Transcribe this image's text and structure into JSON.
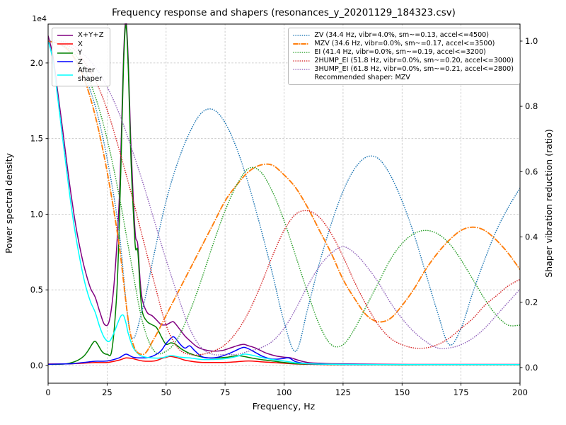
{
  "chart_data": {
    "type": "line",
    "title": "Frequency response and shapers (resonances_y_20201129_184323.csv)",
    "xlabel": "Frequency, Hz",
    "ylabel_left": "Power spectral density",
    "ylabel_right": "Shaper vibration reduction (ratio)",
    "y_offset_text": "1e4",
    "grid": true,
    "legend_left_position": "upper left",
    "legend_right_position": "upper right",
    "legend_right_note": "Recommended shaper: MZV",
    "recommended_shaper": "MZV",
    "xlim": [
      0,
      200
    ],
    "xticks": [
      0,
      25,
      50,
      75,
      100,
      125,
      150,
      175,
      200
    ],
    "xtick_labels": [
      "0",
      "25",
      "50",
      "75",
      "100",
      "125",
      "150",
      "175",
      "200"
    ],
    "ylim_left": [
      -0.117,
      2.257
    ],
    "yticks_left": [
      0.0,
      0.5,
      1.0,
      1.5,
      2.0
    ],
    "ytick_left_labels": [
      "0.0",
      "0.5",
      "1.0",
      "1.5",
      "2.0"
    ],
    "ylim_right": [
      -0.048,
      1.052
    ],
    "yticks_right": [
      0.0,
      0.2,
      0.4,
      0.6,
      0.8,
      1.0
    ],
    "ytick_right_labels": [
      "0.0",
      "0.2",
      "0.4",
      "0.6",
      "0.8",
      "1.0"
    ],
    "psd_units": "1e4",
    "psd_series": [
      {
        "id": "xyz",
        "name": "X+Y+Z",
        "color": "#800080",
        "style": "solid",
        "axis": "left",
        "x": [
          0,
          2,
          4,
          6,
          8,
          10,
          12,
          14,
          16,
          18,
          20,
          22,
          24,
          26,
          28,
          30,
          31,
          32,
          33,
          34,
          35,
          36,
          37,
          38,
          39,
          40,
          42,
          44,
          46,
          48,
          50,
          52,
          53,
          54,
          56,
          58,
          60,
          63,
          66,
          70,
          74,
          78,
          81,
          83,
          85,
          88,
          92,
          96,
          100,
          103,
          106,
          110,
          115,
          120,
          130,
          140,
          160,
          180,
          200
        ],
        "y": [
          2.18,
          2.05,
          1.82,
          1.58,
          1.33,
          1.1,
          0.9,
          0.74,
          0.61,
          0.51,
          0.45,
          0.35,
          0.27,
          0.3,
          0.55,
          1.05,
          1.5,
          2.05,
          2.28,
          2.0,
          1.5,
          1.13,
          0.86,
          0.8,
          0.56,
          0.43,
          0.35,
          0.33,
          0.3,
          0.27,
          0.27,
          0.285,
          0.29,
          0.275,
          0.235,
          0.195,
          0.165,
          0.125,
          0.105,
          0.095,
          0.1,
          0.12,
          0.135,
          0.14,
          0.13,
          0.115,
          0.085,
          0.065,
          0.055,
          0.05,
          0.035,
          0.02,
          0.015,
          0.012,
          0.01,
          0.008,
          0.007,
          0.007,
          0.007
        ]
      },
      {
        "id": "x",
        "name": "X",
        "color": "#ff0000",
        "style": "solid",
        "axis": "left",
        "x": [
          0,
          5,
          10,
          15,
          20,
          25,
          30,
          33,
          36,
          40,
          45,
          48,
          50,
          52,
          55,
          58,
          62,
          66,
          70,
          75,
          80,
          85,
          90,
          95,
          100,
          105,
          110,
          120,
          140,
          160,
          180,
          200
        ],
        "y": [
          0.01,
          0.01,
          0.012,
          0.015,
          0.02,
          0.02,
          0.035,
          0.05,
          0.045,
          0.03,
          0.03,
          0.045,
          0.055,
          0.06,
          0.05,
          0.035,
          0.025,
          0.02,
          0.02,
          0.02,
          0.025,
          0.03,
          0.025,
          0.02,
          0.015,
          0.01,
          0.008,
          0.006,
          0.005,
          0.005,
          0.005,
          0.005
        ]
      },
      {
        "id": "y",
        "name": "Y",
        "color": "#008000",
        "style": "solid",
        "axis": "left",
        "x": [
          0,
          4,
          8,
          12,
          15,
          17,
          19,
          20,
          21,
          23,
          25,
          27,
          29,
          30,
          31,
          32,
          33,
          34,
          35,
          36,
          37,
          38,
          39,
          40,
          42,
          44,
          46,
          48,
          50,
          52,
          54,
          56,
          58,
          60,
          64,
          68,
          72,
          76,
          80,
          83,
          86,
          90,
          95,
          100,
          105,
          110,
          120,
          140,
          160,
          180,
          200
        ],
        "y": [
          0.008,
          0.008,
          0.012,
          0.03,
          0.06,
          0.1,
          0.15,
          0.16,
          0.14,
          0.09,
          0.075,
          0.1,
          0.45,
          0.85,
          1.4,
          2.0,
          2.25,
          1.95,
          1.42,
          1.05,
          0.78,
          0.76,
          0.5,
          0.35,
          0.29,
          0.27,
          0.25,
          0.19,
          0.14,
          0.15,
          0.14,
          0.115,
          0.095,
          0.08,
          0.06,
          0.05,
          0.05,
          0.055,
          0.065,
          0.06,
          0.05,
          0.04,
          0.03,
          0.02,
          0.012,
          0.01,
          0.007,
          0.005,
          0.005,
          0.005,
          0.005
        ]
      },
      {
        "id": "z",
        "name": "Z",
        "color": "#0000ff",
        "style": "solid",
        "axis": "left",
        "x": [
          0,
          5,
          10,
          15,
          20,
          25,
          30,
          33,
          36,
          40,
          43,
          46,
          48,
          50,
          52,
          53,
          54,
          56,
          58,
          60,
          62,
          65,
          68,
          72,
          76,
          79,
          81,
          83,
          85,
          88,
          91,
          95,
          99,
          102,
          105,
          110,
          115,
          120,
          140,
          160,
          180,
          200
        ],
        "y": [
          0.008,
          0.01,
          0.012,
          0.02,
          0.028,
          0.03,
          0.05,
          0.075,
          0.055,
          0.05,
          0.055,
          0.075,
          0.1,
          0.145,
          0.18,
          0.19,
          0.18,
          0.14,
          0.115,
          0.13,
          0.1,
          0.06,
          0.05,
          0.055,
          0.075,
          0.095,
          0.11,
          0.12,
          0.11,
          0.085,
          0.06,
          0.042,
          0.045,
          0.05,
          0.025,
          0.012,
          0.01,
          0.008,
          0.006,
          0.006,
          0.006,
          0.006
        ]
      },
      {
        "id": "after_shaper",
        "name": "After\nshaper",
        "color": "#00ffff",
        "style": "solid",
        "axis": "left",
        "x": [
          0,
          2,
          4,
          6,
          8,
          10,
          12,
          14,
          16,
          18,
          20,
          22,
          24,
          26,
          28,
          30,
          31,
          32,
          33,
          34,
          36,
          38,
          40,
          44,
          48,
          52,
          56,
          60,
          65,
          70,
          75,
          80,
          83,
          86,
          90,
          95,
          100,
          105,
          110,
          120,
          140,
          160,
          180,
          200
        ],
        "y": [
          2.15,
          2.02,
          1.78,
          1.52,
          1.27,
          1.03,
          0.83,
          0.66,
          0.52,
          0.42,
          0.35,
          0.25,
          0.18,
          0.16,
          0.22,
          0.3,
          0.33,
          0.33,
          0.28,
          0.21,
          0.12,
          0.08,
          0.06,
          0.05,
          0.05,
          0.065,
          0.055,
          0.05,
          0.04,
          0.04,
          0.045,
          0.06,
          0.075,
          0.07,
          0.055,
          0.04,
          0.03,
          0.018,
          0.012,
          0.008,
          0.006,
          0.006,
          0.006,
          0.006
        ]
      }
    ],
    "shaper_x": [
      0,
      5,
      10,
      15,
      20,
      25,
      30,
      35,
      40,
      45,
      50,
      55,
      60,
      65,
      70,
      75,
      80,
      85,
      90,
      95,
      100,
      105,
      110,
      115,
      120,
      125,
      130,
      135,
      140,
      145,
      150,
      155,
      160,
      165,
      170,
      175,
      180,
      185,
      190,
      195,
      200
    ],
    "shaper_series": [
      {
        "id": "zv",
        "name": "ZV (34.4 Hz, vibr=4.0%, sm~=0.13, accel<=4500)",
        "freq_hz": 34.4,
        "vibr_pct": 4.0,
        "smoothing": 0.13,
        "max_accel": 4500,
        "color": "#1f77b4",
        "style": "dotted",
        "axis": "right",
        "values": [
          1.0,
          0.99,
          0.96,
          0.9,
          0.8,
          0.64,
          0.42,
          0.1,
          0.18,
          0.35,
          0.51,
          0.63,
          0.72,
          0.78,
          0.79,
          0.75,
          0.67,
          0.56,
          0.43,
          0.29,
          0.14,
          0.05,
          0.18,
          0.32,
          0.44,
          0.54,
          0.61,
          0.645,
          0.64,
          0.59,
          0.51,
          0.41,
          0.29,
          0.17,
          0.07,
          0.12,
          0.23,
          0.33,
          0.42,
          0.49,
          0.55
        ]
      },
      {
        "id": "mzv",
        "name": "MZV (34.6 Hz, vibr=0.0%, sm~=0.17, accel<=3500)",
        "freq_hz": 34.6,
        "vibr_pct": 0.0,
        "smoothing": 0.17,
        "max_accel": 3500,
        "color": "#ff7f0e",
        "style": "dashdot",
        "axis": "right",
        "values": [
          1.0,
          0.99,
          0.96,
          0.89,
          0.77,
          0.6,
          0.38,
          0.1,
          0.04,
          0.09,
          0.16,
          0.23,
          0.3,
          0.37,
          0.44,
          0.51,
          0.56,
          0.6,
          0.62,
          0.62,
          0.59,
          0.55,
          0.49,
          0.42,
          0.35,
          0.27,
          0.21,
          0.16,
          0.14,
          0.15,
          0.19,
          0.24,
          0.3,
          0.35,
          0.39,
          0.42,
          0.43,
          0.42,
          0.39,
          0.35,
          0.3
        ]
      },
      {
        "id": "ei",
        "name": "EI (41.4 Hz, vibr=0.0%, sm~=0.19, accel<=3200)",
        "freq_hz": 41.4,
        "vibr_pct": 0.0,
        "smoothing": 0.19,
        "max_accel": 3200,
        "color": "#2ca02c",
        "style": "dotted",
        "axis": "right",
        "values": [
          1.0,
          0.99,
          0.97,
          0.92,
          0.83,
          0.7,
          0.53,
          0.33,
          0.14,
          0.05,
          0.05,
          0.09,
          0.17,
          0.27,
          0.38,
          0.48,
          0.56,
          0.61,
          0.6,
          0.54,
          0.45,
          0.34,
          0.23,
          0.13,
          0.07,
          0.07,
          0.12,
          0.19,
          0.26,
          0.33,
          0.38,
          0.41,
          0.42,
          0.41,
          0.38,
          0.33,
          0.27,
          0.21,
          0.16,
          0.13,
          0.13
        ]
      },
      {
        "id": "2hump_ei",
        "name": "2HUMP_EI (51.8 Hz, vibr=0.0%, sm~=0.20, accel<=3000)",
        "freq_hz": 51.8,
        "vibr_pct": 0.0,
        "smoothing": 0.2,
        "max_accel": 3000,
        "color": "#d62728",
        "style": "dotted",
        "axis": "right",
        "values": [
          1.0,
          0.99,
          0.98,
          0.94,
          0.88,
          0.79,
          0.67,
          0.54,
          0.4,
          0.26,
          0.13,
          0.06,
          0.04,
          0.04,
          0.05,
          0.07,
          0.11,
          0.17,
          0.25,
          0.34,
          0.42,
          0.47,
          0.48,
          0.46,
          0.41,
          0.34,
          0.26,
          0.19,
          0.13,
          0.09,
          0.07,
          0.06,
          0.06,
          0.07,
          0.09,
          0.12,
          0.15,
          0.19,
          0.22,
          0.25,
          0.27
        ]
      },
      {
        "id": "3hump_ei",
        "name": "3HUMP_EI (61.8 Hz, vibr=0.0%, sm~=0.21, accel<=2800)",
        "freq_hz": 61.8,
        "vibr_pct": 0.0,
        "smoothing": 0.21,
        "max_accel": 2800,
        "color": "#9467bd",
        "style": "dotted",
        "axis": "right",
        "values": [
          1.0,
          1.0,
          0.99,
          0.96,
          0.92,
          0.86,
          0.78,
          0.68,
          0.57,
          0.45,
          0.33,
          0.22,
          0.12,
          0.06,
          0.04,
          0.04,
          0.04,
          0.05,
          0.06,
          0.08,
          0.12,
          0.18,
          0.25,
          0.31,
          0.35,
          0.37,
          0.35,
          0.31,
          0.26,
          0.2,
          0.15,
          0.11,
          0.08,
          0.06,
          0.06,
          0.07,
          0.09,
          0.12,
          0.16,
          0.2,
          0.24
        ]
      }
    ]
  }
}
